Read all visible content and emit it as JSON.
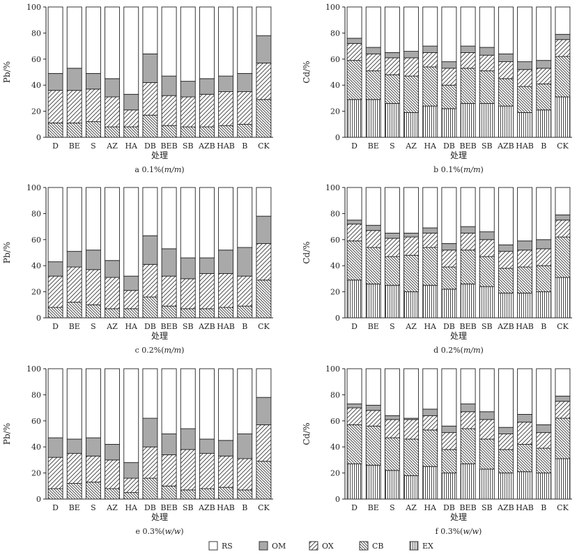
{
  "chart_data": [
    {
      "type": "bar",
      "stacked": true,
      "caption": "a 0.1%(m/m)",
      "caption_prefix": "a 0.1%(",
      "caption_unit": "m/m",
      "caption_suffix": ")",
      "xlabel": "处理",
      "ylabel": "Pb/%",
      "ylim": [
        0,
        100
      ],
      "yticks": [
        0,
        20,
        40,
        60,
        80,
        100
      ],
      "categories": [
        "D",
        "BE",
        "S",
        "AZ",
        "HA",
        "DB",
        "BEB",
        "SB",
        "AZB",
        "HAB",
        "B",
        "CK"
      ],
      "series": [
        {
          "name": "EX",
          "values": [
            0,
            0,
            0,
            0,
            0,
            0,
            0,
            0,
            0,
            0,
            0,
            0
          ]
        },
        {
          "name": "CB",
          "values": [
            11,
            11,
            12,
            8,
            8,
            17,
            9,
            8,
            8,
            9,
            10,
            29
          ]
        },
        {
          "name": "OX",
          "values": [
            25,
            25,
            25,
            23,
            13,
            25,
            23,
            23,
            25,
            26,
            25,
            28
          ]
        },
        {
          "name": "OM",
          "values": [
            13,
            17,
            12,
            14,
            12,
            22,
            15,
            12,
            12,
            12,
            14,
            21
          ]
        },
        {
          "name": "RS",
          "values": [
            51,
            47,
            51,
            55,
            67,
            36,
            53,
            57,
            55,
            53,
            51,
            22
          ]
        }
      ]
    },
    {
      "type": "bar",
      "stacked": true,
      "caption": "b 0.1%(m/m)",
      "caption_prefix": "b 0.1%(",
      "caption_unit": "m/m",
      "caption_suffix": ")",
      "xlabel": "处理",
      "ylabel": "Cd/%",
      "ylim": [
        0,
        100
      ],
      "yticks": [
        0,
        20,
        40,
        60,
        80,
        100
      ],
      "categories": [
        "D",
        "BE",
        "S",
        "AZ",
        "HA",
        "DB",
        "BEB",
        "SB",
        "AZB",
        "HAB",
        "B",
        "CK"
      ],
      "series": [
        {
          "name": "EX",
          "values": [
            29,
            29,
            26,
            19,
            24,
            22,
            26,
            26,
            24,
            19,
            21,
            31
          ]
        },
        {
          "name": "CB",
          "values": [
            30,
            22,
            22,
            28,
            30,
            18,
            27,
            25,
            21,
            20,
            20,
            31
          ]
        },
        {
          "name": "OX",
          "values": [
            13,
            13,
            13,
            14,
            11,
            13,
            12,
            12,
            13,
            13,
            12,
            13
          ]
        },
        {
          "name": "OM",
          "values": [
            4,
            5,
            4,
            5,
            5,
            5,
            5,
            6,
            6,
            6,
            6,
            4
          ]
        },
        {
          "name": "RS",
          "values": [
            24,
            31,
            35,
            34,
            30,
            42,
            30,
            31,
            36,
            42,
            41,
            21
          ]
        }
      ]
    },
    {
      "type": "bar",
      "stacked": true,
      "caption": "c 0.2%(m/m)",
      "caption_prefix": "c 0.2%(",
      "caption_unit": "m/m",
      "caption_suffix": ")",
      "xlabel": "处理",
      "ylabel": "Pb/%",
      "ylim": [
        0,
        100
      ],
      "yticks": [
        0,
        20,
        40,
        60,
        80,
        100
      ],
      "categories": [
        "D",
        "BE",
        "S",
        "AZ",
        "HA",
        "DB",
        "BEB",
        "SB",
        "AZB",
        "HAB",
        "B",
        "CK"
      ],
      "series": [
        {
          "name": "EX",
          "values": [
            0,
            0,
            0,
            0,
            0,
            0,
            0,
            0,
            0,
            0,
            0,
            0
          ]
        },
        {
          "name": "CB",
          "values": [
            8,
            12,
            10,
            7,
            7,
            16,
            9,
            7,
            7,
            8,
            9,
            29
          ]
        },
        {
          "name": "OX",
          "values": [
            24,
            27,
            27,
            24,
            14,
            25,
            23,
            23,
            27,
            26,
            23,
            28
          ]
        },
        {
          "name": "OM",
          "values": [
            11,
            12,
            15,
            13,
            11,
            22,
            21,
            16,
            12,
            18,
            22,
            21
          ]
        },
        {
          "name": "RS",
          "values": [
            57,
            49,
            48,
            56,
            68,
            37,
            47,
            54,
            54,
            48,
            46,
            22
          ]
        }
      ]
    },
    {
      "type": "bar",
      "stacked": true,
      "caption": "d 0.2%(m/m)",
      "caption_prefix": "d 0.2%(",
      "caption_unit": "m/m",
      "caption_suffix": ")",
      "xlabel": "处理",
      "ylabel": "Cd/%",
      "ylim": [
        0,
        100
      ],
      "yticks": [
        0,
        20,
        40,
        60,
        80,
        100
      ],
      "categories": [
        "D",
        "BE",
        "S",
        "AZ",
        "HA",
        "DB",
        "BEB",
        "SB",
        "AZB",
        "HAB",
        "B",
        "CK"
      ],
      "series": [
        {
          "name": "EX",
          "values": [
            29,
            26,
            25,
            20,
            25,
            22,
            26,
            24,
            19,
            19,
            20,
            31
          ]
        },
        {
          "name": "CB",
          "values": [
            30,
            28,
            22,
            28,
            29,
            17,
            26,
            23,
            19,
            20,
            20,
            31
          ]
        },
        {
          "name": "OX",
          "values": [
            13,
            13,
            14,
            14,
            11,
            13,
            13,
            13,
            13,
            13,
            13,
            13
          ]
        },
        {
          "name": "OM",
          "values": [
            3,
            4,
            4,
            3,
            4,
            5,
            5,
            6,
            5,
            7,
            7,
            4
          ]
        },
        {
          "name": "RS",
          "values": [
            25,
            29,
            35,
            35,
            31,
            43,
            30,
            34,
            44,
            41,
            40,
            21
          ]
        }
      ]
    },
    {
      "type": "bar",
      "stacked": true,
      "caption": "e 0.3%(w/w)",
      "caption_prefix": "e 0.3%(",
      "caption_unit": "w/w",
      "caption_suffix": ")",
      "xlabel": "处理",
      "ylabel": "Pb/%",
      "ylim": [
        0,
        100
      ],
      "yticks": [
        0,
        20,
        40,
        60,
        80,
        100
      ],
      "categories": [
        "D",
        "BE",
        "S",
        "AZ",
        "HA",
        "DB",
        "BEB",
        "SB",
        "AZB",
        "HAB",
        "B",
        "CK"
      ],
      "series": [
        {
          "name": "EX",
          "values": [
            0,
            0,
            0,
            0,
            0,
            0,
            0,
            0,
            0,
            0,
            0,
            0
          ]
        },
        {
          "name": "CB",
          "values": [
            8,
            12,
            13,
            8,
            5,
            16,
            10,
            7,
            8,
            9,
            7,
            29
          ]
        },
        {
          "name": "OX",
          "values": [
            24,
            23,
            20,
            22,
            11,
            24,
            24,
            31,
            27,
            24,
            24,
            28
          ]
        },
        {
          "name": "OM",
          "values": [
            15,
            11,
            14,
            12,
            12,
            22,
            16,
            16,
            11,
            12,
            19,
            21
          ]
        },
        {
          "name": "RS",
          "values": [
            53,
            54,
            53,
            58,
            72,
            38,
            50,
            46,
            54,
            55,
            50,
            22
          ]
        }
      ]
    },
    {
      "type": "bar",
      "stacked": true,
      "caption": "f 0.3%(w/w)",
      "caption_prefix": "f 0.3%(",
      "caption_unit": "w/w",
      "caption_suffix": ")",
      "xlabel": "处理",
      "ylabel": "Cd/%",
      "ylim": [
        0,
        100
      ],
      "yticks": [
        0,
        20,
        40,
        60,
        80,
        100
      ],
      "categories": [
        "D",
        "BE",
        "S",
        "AZ",
        "HA",
        "DB",
        "BEB",
        "SB",
        "AZB",
        "HAB",
        "B",
        "CK"
      ],
      "series": [
        {
          "name": "EX",
          "values": [
            27,
            26,
            22,
            18,
            25,
            20,
            27,
            23,
            20,
            21,
            20,
            31
          ]
        },
        {
          "name": "CB",
          "values": [
            30,
            30,
            25,
            28,
            28,
            18,
            27,
            23,
            18,
            21,
            19,
            31
          ]
        },
        {
          "name": "OX",
          "values": [
            13,
            12,
            14,
            15,
            11,
            13,
            13,
            15,
            12,
            17,
            12,
            13
          ]
        },
        {
          "name": "OM",
          "values": [
            3,
            4,
            3,
            1,
            5,
            5,
            6,
            6,
            5,
            6,
            6,
            4
          ]
        },
        {
          "name": "RS",
          "values": [
            27,
            28,
            36,
            38,
            31,
            44,
            27,
            33,
            45,
            35,
            43,
            21
          ]
        }
      ]
    }
  ],
  "legend": {
    "placement": "bottom-center",
    "items": [
      {
        "key": "RS",
        "label": "RS",
        "fill": "white"
      },
      {
        "key": "OM",
        "label": "OM",
        "fill": "gray"
      },
      {
        "key": "OX",
        "label": "OX",
        "fill": "diag-light"
      },
      {
        "key": "CB",
        "label": "CB",
        "fill": "diag-dense"
      },
      {
        "key": "EX",
        "label": "EX",
        "fill": "vertical"
      }
    ]
  },
  "colors": {
    "stroke": "#222222",
    "om_fill": "#a9a9a9",
    "rs_fill": "#ffffff",
    "hatch": "#333333"
  }
}
